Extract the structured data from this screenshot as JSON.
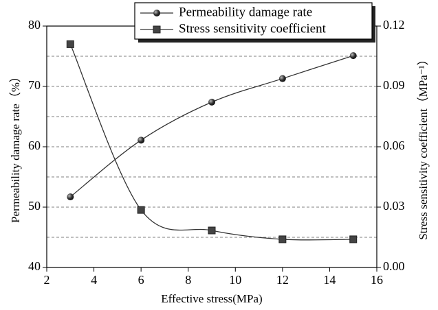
{
  "chart_data": {
    "type": "line",
    "x_label": "Effective stress(MPa)",
    "y_label": "Permeability damage rate（%）",
    "y2_label": "Stress sensitivity coefficient（MPa⁻¹）",
    "x": [
      3,
      6,
      9,
      12,
      15
    ],
    "series": [
      {
        "name": "Permeability damage rate",
        "color": "#333333",
        "marker": "circle",
        "values": [
          51.7,
          61.1,
          67.4,
          71.3,
          75.1
        ]
      },
      {
        "name": "Stress sensitivity coefficient",
        "color": "#333333",
        "marker": "square",
        "axis": "y2",
        "values": [
          0.111,
          0.0286,
          0.0184,
          0.014,
          0.014
        ]
      }
    ],
    "xlim": [
      2,
      16
    ],
    "xticks": [
      2,
      4,
      6,
      8,
      10,
      12,
      14,
      16
    ],
    "ylim": [
      40,
      80
    ],
    "yticks": [
      40,
      50,
      60,
      70,
      80
    ],
    "y_minor_ticks": [
      45,
      55,
      65,
      75
    ],
    "y2lim": [
      0,
      0.12
    ],
    "y2ticks": [
      {
        "value": 0,
        "label": "0.00"
      },
      {
        "value": 0.03,
        "label": "0.03"
      },
      {
        "value": 0.06,
        "label": "0.06"
      },
      {
        "value": 0.09,
        "label": "0.09"
      },
      {
        "value": 0.12,
        "label": "0.12"
      }
    ],
    "grid": true,
    "legend": "top-right"
  }
}
